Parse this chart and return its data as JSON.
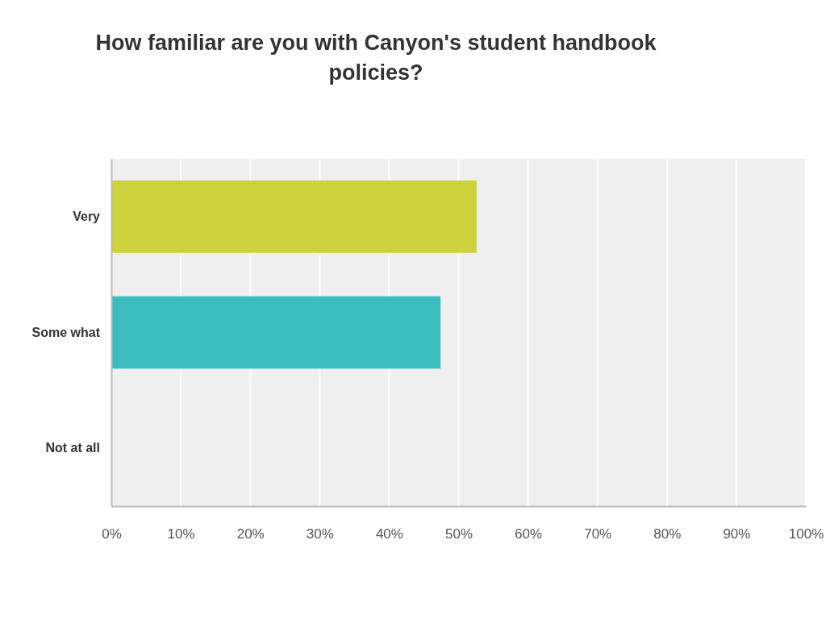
{
  "chart_data": {
    "type": "bar",
    "orientation": "horizontal",
    "title": "How familiar are you with Canyon's student handbook policies?",
    "categories": [
      "Very",
      "Some what",
      "Not at all"
    ],
    "values": [
      52.6,
      47.4,
      0
    ],
    "colors": [
      "#cdd13c",
      "#3bbdbf",
      "#e8743b"
    ],
    "xlim": [
      0,
      100
    ],
    "xticks": [
      {
        "value": 0,
        "label": "0%"
      },
      {
        "value": 10,
        "label": "10%"
      },
      {
        "value": 20,
        "label": "20%"
      },
      {
        "value": 30,
        "label": "30%"
      },
      {
        "value": 40,
        "label": "40%"
      },
      {
        "value": 50,
        "label": "50%"
      },
      {
        "value": 60,
        "label": "60%"
      },
      {
        "value": 70,
        "label": "70%"
      },
      {
        "value": 80,
        "label": "80%"
      },
      {
        "value": 90,
        "label": "90%"
      },
      {
        "value": 100,
        "label": "100%"
      }
    ],
    "grid": "x"
  }
}
